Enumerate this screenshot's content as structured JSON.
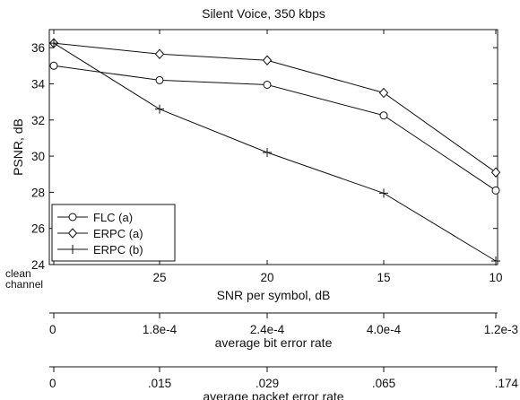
{
  "chart_data": {
    "type": "line",
    "title": "Silent Voice, 350 kbps",
    "xlabel": "SNR per symbol, dB",
    "ylabel": "PSNR, dB",
    "categories": [
      "clean channel",
      "25",
      "20",
      "15",
      "10"
    ],
    "ylim": [
      24,
      37
    ],
    "yticks": [
      24,
      26,
      28,
      30,
      32,
      34,
      36
    ],
    "grid": false,
    "legend_position": "bottom-left",
    "series": [
      {
        "name": "FLC (a)",
        "marker": "circle",
        "values": [
          35.0,
          34.2,
          33.95,
          32.25,
          28.1
        ]
      },
      {
        "name": "ERPC (a)",
        "marker": "diamond",
        "values": [
          36.25,
          35.65,
          35.3,
          33.5,
          29.1
        ]
      },
      {
        "name": "ERPC (b)",
        "marker": "plus",
        "values": [
          36.25,
          32.6,
          30.2,
          27.95,
          24.2
        ]
      }
    ],
    "secondary_axes": [
      {
        "label": "average bit error rate",
        "ticks": [
          "0",
          "1.8e-4",
          "2.4e-4",
          "4.0e-4",
          "1.2e-3"
        ]
      },
      {
        "label": "average packet error rate",
        "ticks": [
          "0",
          ".015",
          ".029",
          ".065",
          ".174"
        ]
      }
    ]
  }
}
